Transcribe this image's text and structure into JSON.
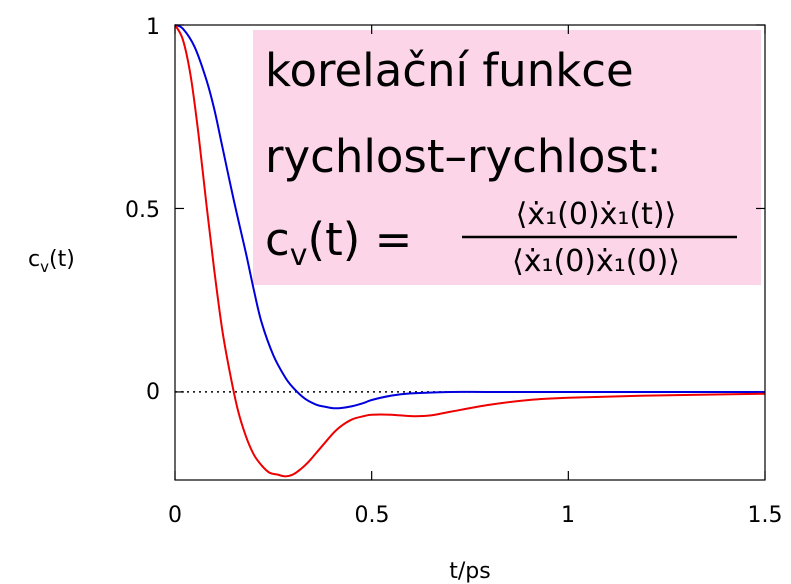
{
  "chart_data": {
    "type": "line",
    "xlabel": "t/ps",
    "ylabel": {
      "base": "c",
      "sub": "v",
      "suffix": "(t)"
    },
    "xlim": [
      0,
      1.5
    ],
    "ylim": [
      -0.24,
      1.0
    ],
    "xticks": [
      0,
      0.5,
      1,
      1.5
    ],
    "xtick_labels": [
      "0",
      "0.5",
      "1",
      "1.5"
    ],
    "yticks": [
      0,
      0.5,
      1
    ],
    "ytick_labels": [
      "0",
      "0.5",
      "1"
    ],
    "zero_line": "dotted",
    "grid": false,
    "series": [
      {
        "color": "#0000dd",
        "x": [
          0,
          0.02,
          0.05,
          0.08,
          0.1,
          0.12,
          0.15,
          0.18,
          0.2,
          0.22,
          0.25,
          0.28,
          0.3,
          0.33,
          0.36,
          0.38,
          0.4,
          0.42,
          0.45,
          0.48,
          0.5,
          0.55,
          0.6,
          0.7,
          0.8,
          1.0,
          1.2,
          1.5
        ],
        "y": [
          1.0,
          0.99,
          0.94,
          0.85,
          0.77,
          0.67,
          0.52,
          0.38,
          0.28,
          0.19,
          0.1,
          0.04,
          0.012,
          -0.018,
          -0.035,
          -0.04,
          -0.044,
          -0.044,
          -0.039,
          -0.03,
          -0.022,
          -0.01,
          -0.004,
          0.0,
          0.0,
          0.0,
          0.0,
          0.0
        ]
      },
      {
        "color": "#ee0000",
        "x": [
          0,
          0.02,
          0.04,
          0.06,
          0.08,
          0.1,
          0.12,
          0.14,
          0.16,
          0.18,
          0.2,
          0.22,
          0.24,
          0.26,
          0.28,
          0.3,
          0.32,
          0.34,
          0.36,
          0.38,
          0.4,
          0.42,
          0.45,
          0.48,
          0.5,
          0.55,
          0.6,
          0.65,
          0.7,
          0.8,
          0.9,
          1.0,
          1.2,
          1.5
        ],
        "y": [
          1.0,
          0.96,
          0.86,
          0.7,
          0.51,
          0.33,
          0.17,
          0.05,
          -0.05,
          -0.12,
          -0.17,
          -0.2,
          -0.22,
          -0.225,
          -0.23,
          -0.225,
          -0.21,
          -0.19,
          -0.165,
          -0.14,
          -0.115,
          -0.095,
          -0.075,
          -0.066,
          -0.062,
          -0.062,
          -0.066,
          -0.064,
          -0.054,
          -0.035,
          -0.022,
          -0.016,
          -0.01,
          -0.005
        ]
      }
    ],
    "annotation": {
      "line1": "korelační funkce",
      "line2": "rychlost–rychlost:",
      "formula_lhs": "c",
      "formula_lhs_sub": "v",
      "formula_lhs_arg": "(t) =",
      "numerator": "⟨ẋ₁(0)ẋ₁(t)⟩",
      "denominator": "⟨ẋ₁(0)ẋ₁(0)⟩",
      "background": "#fcd6e8"
    }
  }
}
